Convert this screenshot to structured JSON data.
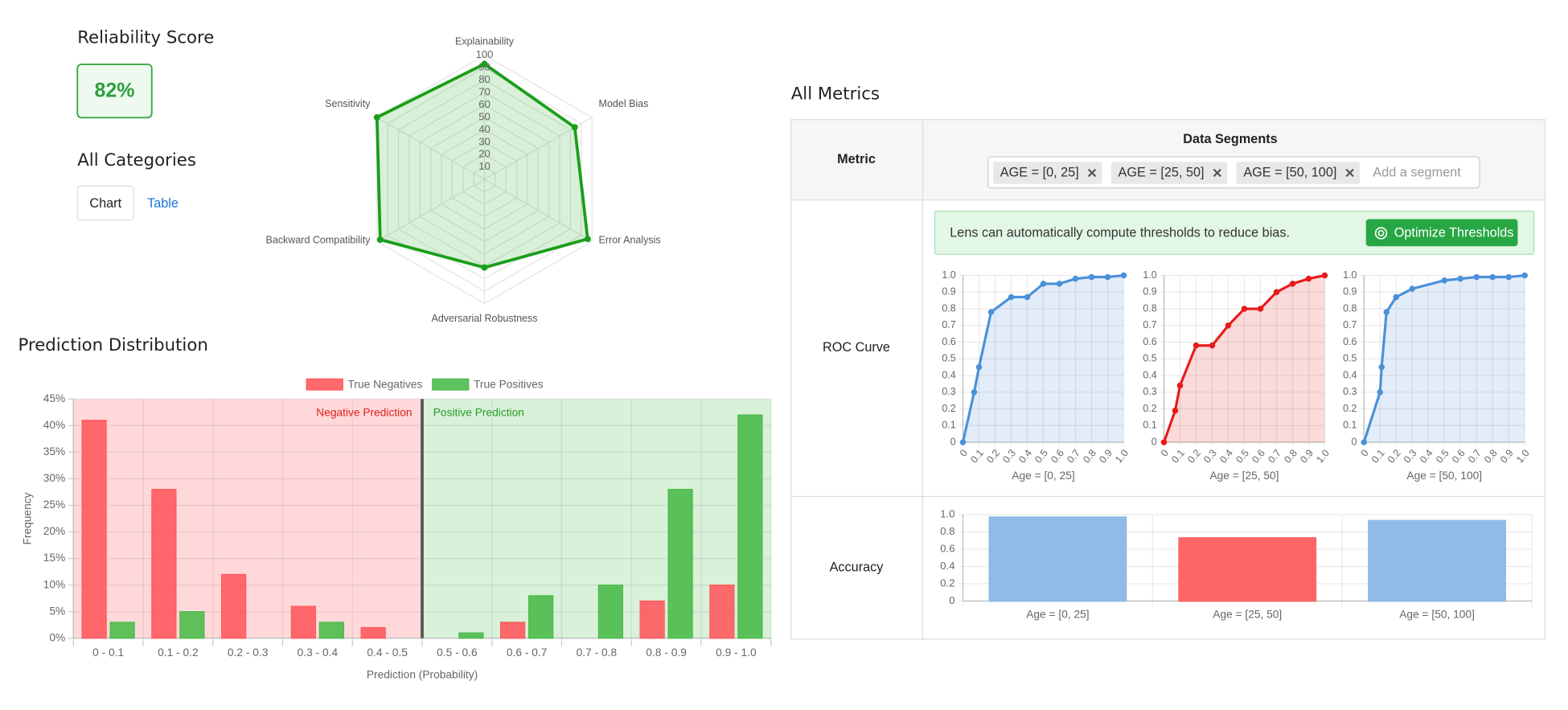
{
  "reliability": {
    "title": "Reliability Score",
    "score": "82%"
  },
  "categories_section": {
    "title": "All Categories",
    "tabs": [
      "Chart",
      "Table"
    ]
  },
  "radar": {
    "type": "radar",
    "categories": [
      "Explainability",
      "Model Bias",
      "Error Analysis",
      "Adversarial Robustness",
      "Backward Compatibility",
      "Sensitivity"
    ],
    "values": [
      93,
      84,
      96,
      71,
      97,
      100
    ],
    "rlim": [
      0,
      100
    ],
    "rticks": [
      10,
      20,
      30,
      40,
      50,
      60,
      70,
      80,
      90,
      100
    ],
    "color": "#1a9e1a"
  },
  "prediction": {
    "type": "bar",
    "title": "Prediction Distribution",
    "categories": [
      "0 - 0.1",
      "0.1 - 0.2",
      "0.2 - 0.3",
      "0.3 - 0.4",
      "0.4 - 0.5",
      "0.5 - 0.6",
      "0.6 - 0.7",
      "0.7 - 0.8",
      "0.8 - 0.9",
      "0.9 - 1.0"
    ],
    "series": [
      {
        "name": "True Negatives",
        "color": "#ff5a5f",
        "values": [
          41,
          28,
          12,
          6,
          2,
          0,
          3,
          0,
          7,
          10
        ]
      },
      {
        "name": "True Positives",
        "color": "#4cbb4c",
        "values": [
          3,
          5,
          0,
          3,
          0,
          1,
          8,
          10,
          28,
          42
        ]
      }
    ],
    "ylim": [
      0,
      45
    ],
    "yticks": [
      {
        "value": 0,
        "label": "0%"
      },
      {
        "value": 5,
        "label": "5%"
      },
      {
        "value": 10,
        "label": "10%"
      },
      {
        "value": 15,
        "label": "15%"
      },
      {
        "value": 20,
        "label": "20%"
      },
      {
        "value": 25,
        "label": "25%"
      },
      {
        "value": 30,
        "label": "30%"
      },
      {
        "value": 35,
        "label": "35%"
      },
      {
        "value": 40,
        "label": "40%"
      },
      {
        "value": 45,
        "label": "45%"
      }
    ],
    "xlabel": "Prediction (Probability)",
    "ylabel": "Frequency",
    "negative_label": "Negative Prediction",
    "positive_label": "Positive Prediction",
    "grid": true
  },
  "metrics": {
    "title": "All Metrics",
    "header": [
      "Metric",
      "Data Segments"
    ],
    "segments": [
      "AGE = [0, 25]",
      "AGE = [25, 50]",
      "AGE = [50, 100]"
    ],
    "placeholder": "Add a segment",
    "notice": "Lens can automatically compute thresholds to reduce bias.",
    "button": "Optimize Thresholds",
    "rows": [
      "ROC Curve",
      "Accuracy"
    ],
    "roc": {
      "type": "line",
      "xlim": [
        0,
        1
      ],
      "ylim": [
        0,
        1
      ],
      "xticks": [
        0,
        0.1,
        0.2,
        0.3,
        0.4,
        0.5,
        0.6,
        0.7,
        0.8,
        0.9,
        {
          "value": 1,
          "label": "1.0"
        }
      ],
      "yticks": [
        0,
        0.1,
        0.2,
        0.3,
        0.4,
        0.5,
        0.6,
        0.7,
        0.8,
        0.9,
        {
          "value": 1,
          "label": "1.0"
        }
      ],
      "charts": [
        {
          "title": "Age = [0, 25]",
          "color": "#4a90d9",
          "x": [
            0,
            0.07,
            0.1,
            0.175,
            0.3,
            0.4,
            0.5,
            0.6,
            0.7,
            0.8,
            0.9,
            1
          ],
          "values": [
            0,
            0.3,
            0.45,
            0.78,
            0.87,
            0.87,
            0.95,
            0.95,
            0.98,
            0.99,
            0.99,
            1
          ]
        },
        {
          "title": "Age = [25, 50]",
          "color": "#e81a1a",
          "x": [
            0,
            0.07,
            0.1,
            0.2,
            0.3,
            0.4,
            0.5,
            0.6,
            0.7,
            0.8,
            0.9,
            1
          ],
          "values": [
            0,
            0.19,
            0.34,
            0.58,
            0.58,
            0.7,
            0.8,
            0.8,
            0.9,
            0.95,
            0.98,
            1
          ]
        },
        {
          "title": "Age = [50, 100]",
          "color": "#4a90d9",
          "x": [
            0,
            0.1,
            0.11,
            0.14,
            0.2,
            0.3,
            0.5,
            0.6,
            0.7,
            0.8,
            0.9,
            1
          ],
          "values": [
            0,
            0.3,
            0.45,
            0.78,
            0.87,
            0.92,
            0.97,
            0.98,
            0.99,
            0.99,
            0.99,
            1
          ]
        }
      ]
    },
    "accuracy": {
      "type": "bar",
      "categories": [
        "Age = [0, 25]",
        "Age = [25, 50]",
        "Age = [50, 100]"
      ],
      "values": [
        0.97,
        0.73,
        0.93
      ],
      "colors": [
        "#8fbbe6",
        "#ff6666",
        "#8fbbe6"
      ],
      "ylim": [
        0,
        1
      ],
      "yticks": [
        0,
        0.2,
        0.4,
        0.6,
        0.8,
        {
          "value": 1,
          "label": "1.0"
        }
      ]
    }
  }
}
